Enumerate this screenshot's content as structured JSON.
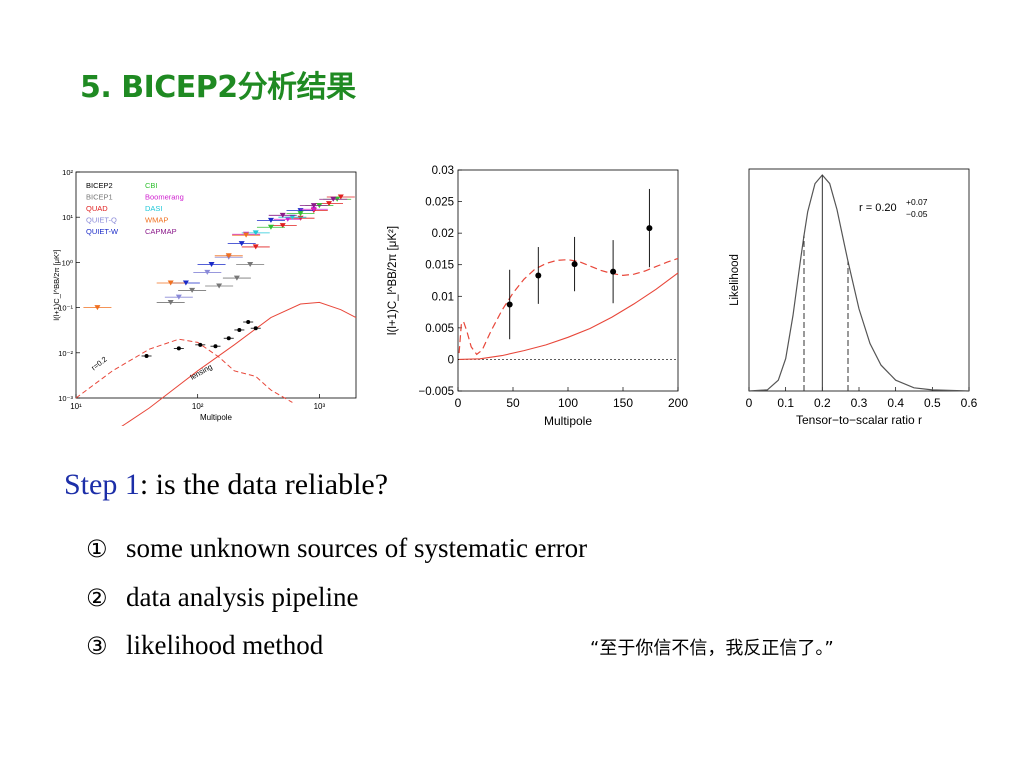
{
  "slide": {
    "title": "5. BICEP2分析结果",
    "step_label": "Step 1",
    "step_text": ": is the data reliable?",
    "bullets": [
      {
        "num": "①",
        "text": "some unknown sources of systematic error"
      },
      {
        "num": "②",
        "text": "data analysis pipeline"
      },
      {
        "num": "③",
        "text": "likelihood method"
      }
    ],
    "quote": "“至于你信不信，我反正信了。”",
    "colors": {
      "title": "#1f8a22",
      "step_label": "#1c2ea8",
      "model_line": "#e8473a"
    }
  },
  "chart_data": [
    {
      "type": "scatter",
      "scale": "log-log",
      "xlabel": "Multipole",
      "ylabel": "l(l+1)C_l^BB/2π [μK²]",
      "xlim": [
        10,
        2000
      ],
      "ylim": [
        0.001,
        100
      ],
      "x_ticks": [
        "10¹",
        "10²",
        "10³"
      ],
      "y_ticks": [
        "10⁻³",
        "10⁻²",
        "10⁻¹",
        "10⁰",
        "10¹",
        "10²"
      ],
      "legend": [
        {
          "name": "BICEP2",
          "color": "#000000"
        },
        {
          "name": "BICEP1",
          "color": "#777777"
        },
        {
          "name": "QUAD",
          "color": "#e02020"
        },
        {
          "name": "QUIET-Q",
          "color": "#8a8ad8"
        },
        {
          "name": "QUIET-W",
          "color": "#1a2ac8"
        },
        {
          "name": "CBI",
          "color": "#30c030"
        },
        {
          "name": "Boomerang",
          "color": "#d020d0"
        },
        {
          "name": "DASI",
          "color": "#20c8d8"
        },
        {
          "name": "WMAP",
          "color": "#f07020"
        },
        {
          "name": "CAPMAP",
          "color": "#8a1a8a"
        }
      ],
      "annotations": [
        "r=0.2",
        "lensing"
      ],
      "series": [
        {
          "name": "BICEP2",
          "points": [
            [
              38,
              0.0085
            ],
            [
              70,
              0.0125
            ],
            [
              105,
              0.015
            ],
            [
              140,
              0.014
            ],
            [
              180,
              0.021
            ],
            [
              220,
              0.032
            ],
            [
              260,
              0.048
            ],
            [
              300,
              0.035
            ]
          ]
        },
        {
          "name": "BICEP1",
          "points": [
            [
              60,
              0.13
            ],
            [
              90,
              0.24
            ],
            [
              150,
              0.3
            ],
            [
              210,
              0.45
            ],
            [
              270,
              0.9
            ]
          ]
        },
        {
          "name": "QUAD",
          "points": [
            [
              300,
              2.2
            ],
            [
              500,
              6.5
            ],
            [
              700,
              9.5
            ],
            [
              900,
              14
            ],
            [
              1200,
              20
            ],
            [
              1500,
              28
            ]
          ]
        },
        {
          "name": "QUIET-Q",
          "points": [
            [
              70,
              0.17
            ],
            [
              120,
              0.6
            ],
            [
              180,
              1.3
            ]
          ]
        },
        {
          "name": "QUIET-W",
          "points": [
            [
              80,
              0.35
            ],
            [
              130,
              0.9
            ],
            [
              230,
              2.6
            ],
            [
              400,
              8.5
            ],
            [
              700,
              14
            ]
          ]
        },
        {
          "name": "CBI",
          "points": [
            [
              400,
              6
            ],
            [
              700,
              12
            ],
            [
              1000,
              18
            ],
            [
              1400,
              25
            ]
          ]
        },
        {
          "name": "Boomerang",
          "points": [
            [
              250,
              4.2
            ],
            [
              550,
              9
            ],
            [
              900,
              15
            ]
          ]
        },
        {
          "name": "DASI",
          "points": [
            [
              300,
              4.5
            ],
            [
              600,
              10
            ]
          ]
        },
        {
          "name": "WMAP",
          "points": [
            [
              15,
              0.1
            ],
            [
              60,
              0.35
            ],
            [
              180,
              1.4
            ],
            [
              250,
              4
            ]
          ]
        },
        {
          "name": "CAPMAP",
          "points": [
            [
              500,
              11
            ],
            [
              900,
              18
            ],
            [
              1300,
              25
            ]
          ]
        }
      ]
    },
    {
      "type": "line",
      "xlabel": "Multipole",
      "ylabel": "l(l+1)C_l^BB/2π [μK²]",
      "xlim": [
        0,
        200
      ],
      "ylim": [
        -0.005,
        0.03
      ],
      "x_ticks": [
        "0",
        "50",
        "100",
        "150",
        "200"
      ],
      "y_ticks": [
        "−0.005",
        "0",
        "0.005",
        "0.01",
        "0.015",
        "0.02",
        "0.025",
        "0.03"
      ],
      "points": [
        {
          "x": 47,
          "y": 0.0087,
          "err": 0.0055
        },
        {
          "x": 73,
          "y": 0.0133,
          "err": 0.0045
        },
        {
          "x": 106,
          "y": 0.0151,
          "err": 0.0043
        },
        {
          "x": 141,
          "y": 0.0139,
          "err": 0.005
        },
        {
          "x": 174,
          "y": 0.0208,
          "err": 0.0062
        }
      ],
      "model_total": [
        [
          1,
          0.001
        ],
        [
          3,
          0.0055
        ],
        [
          5,
          0.006
        ],
        [
          8,
          0.0045
        ],
        [
          12,
          0.002
        ],
        [
          17,
          0.0008
        ],
        [
          22,
          0.0015
        ],
        [
          30,
          0.0045
        ],
        [
          40,
          0.0078
        ],
        [
          50,
          0.0105
        ],
        [
          60,
          0.0127
        ],
        [
          70,
          0.0143
        ],
        [
          80,
          0.0152
        ],
        [
          90,
          0.0157
        ],
        [
          100,
          0.0158
        ],
        [
          110,
          0.0155
        ],
        [
          120,
          0.0148
        ],
        [
          130,
          0.0141
        ],
        [
          140,
          0.0136
        ],
        [
          150,
          0.0133
        ],
        [
          160,
          0.0135
        ],
        [
          170,
          0.014
        ],
        [
          180,
          0.0147
        ],
        [
          190,
          0.0154
        ],
        [
          200,
          0.016
        ]
      ],
      "lensing": [
        [
          1,
          0.0
        ],
        [
          20,
          0.0001
        ],
        [
          40,
          0.0006
        ],
        [
          60,
          0.0014
        ],
        [
          80,
          0.0023
        ],
        [
          100,
          0.0035
        ],
        [
          120,
          0.0049
        ],
        [
          140,
          0.0067
        ],
        [
          160,
          0.0088
        ],
        [
          180,
          0.0111
        ],
        [
          200,
          0.0137
        ]
      ]
    },
    {
      "type": "line",
      "xlabel": "Tensor−to−scalar ratio r",
      "ylabel": "Likelihood",
      "xlim": [
        0,
        0.6
      ],
      "x_ticks": [
        "0",
        "0.1",
        "0.2",
        "0.3",
        "0.4",
        "0.5",
        "0.6"
      ],
      "annotation": {
        "text": "r = 0.20",
        "sup": "+0.07",
        "sub": "−0.05"
      },
      "peak": 0.2,
      "interval": [
        0.15,
        0.27
      ],
      "curve": [
        [
          0.0,
          0.0
        ],
        [
          0.05,
          0.005
        ],
        [
          0.08,
          0.05
        ],
        [
          0.1,
          0.15
        ],
        [
          0.12,
          0.35
        ],
        [
          0.14,
          0.6
        ],
        [
          0.15,
          0.72
        ],
        [
          0.16,
          0.83
        ],
        [
          0.18,
          0.96
        ],
        [
          0.2,
          1.0
        ],
        [
          0.22,
          0.96
        ],
        [
          0.24,
          0.84
        ],
        [
          0.26,
          0.68
        ],
        [
          0.27,
          0.6
        ],
        [
          0.3,
          0.38
        ],
        [
          0.33,
          0.22
        ],
        [
          0.36,
          0.12
        ],
        [
          0.4,
          0.05
        ],
        [
          0.45,
          0.015
        ],
        [
          0.5,
          0.005
        ],
        [
          0.6,
          0.0
        ]
      ]
    }
  ]
}
